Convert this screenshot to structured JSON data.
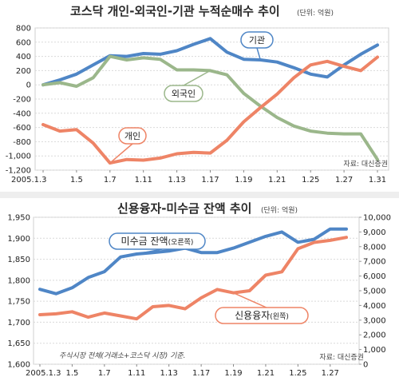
{
  "chart_data": [
    {
      "type": "line",
      "title": "코스닥 개인-외국인-기관 누적순매수 추이",
      "unit": "(단위: 억원)",
      "source": "자료: 대신증권",
      "x_tick_labels": [
        "2005.1.3",
        "1.5",
        "1.7",
        "1.11",
        "1.13",
        "1.17",
        "1.19",
        "1.21",
        "1.25",
        "1.27",
        "1.31"
      ],
      "y_tick_labels": [
        "800",
        "600",
        "400",
        "200",
        "0",
        "-200",
        "-400",
        "-600",
        "-800",
        "-1,000",
        "-1,200"
      ],
      "ylim": [
        -1200,
        800
      ],
      "grid": true,
      "series": [
        {
          "name": "기관",
          "color": "#4f86c6",
          "values": [
            0,
            70,
            150,
            280,
            410,
            400,
            440,
            430,
            480,
            570,
            650,
            460,
            360,
            350,
            320,
            240,
            150,
            110,
            280,
            430,
            560
          ]
        },
        {
          "name": "외국인",
          "color": "#9bb78b",
          "values": [
            0,
            30,
            -20,
            100,
            400,
            350,
            380,
            360,
            210,
            210,
            200,
            140,
            -120,
            -300,
            -460,
            -580,
            -650,
            -680,
            -690,
            -690,
            -1050
          ]
        },
        {
          "name": "개인",
          "color": "#ee8466",
          "values": [
            -560,
            -650,
            -630,
            -820,
            -1100,
            -1050,
            -1060,
            -1030,
            -970,
            -950,
            -960,
            -780,
            -520,
            -320,
            -130,
            100,
            280,
            330,
            260,
            200,
            390
          ]
        }
      ]
    },
    {
      "type": "line",
      "title": "신용융자-미수금 잔액 추이",
      "unit": "(단위: 억원)",
      "source": "자료: 대신증권",
      "note": "주식시장 전체(거래소+코스닥 시장) 기준.",
      "x_tick_labels": [
        "2005.1.3",
        "1.5",
        "1.7",
        "1.11",
        "1.13",
        "1.17",
        "1.19",
        "1.21",
        "1.25",
        "1.27"
      ],
      "y_left_tick_labels": [
        "1,950",
        "1,900",
        "1,850",
        "1,800",
        "1,750",
        "1,700",
        "1,650",
        "1,600"
      ],
      "y_right_tick_labels": [
        "10,000",
        "9,000",
        "8,000",
        "7,000",
        "6,000",
        "5,000",
        "4,000",
        "3,000",
        "2,000",
        "1,000",
        "0"
      ],
      "ylim_left": [
        1600,
        1950
      ],
      "ylim_right": [
        0,
        10000
      ],
      "grid": true,
      "series": [
        {
          "name": "미수금 잔액",
          "name_note": "(오른쪽)",
          "axis": "right",
          "color": "#4f86c6",
          "values": [
            5100,
            4800,
            5200,
            5900,
            6300,
            7300,
            7500,
            7600,
            7700,
            7900,
            7600,
            7600,
            7900,
            8300,
            8700,
            9000,
            8300,
            8500,
            9200,
            9200
          ]
        },
        {
          "name": "신용융자",
          "name_note": "(왼쪽)",
          "axis": "left",
          "color": "#ee8466",
          "values": [
            1718,
            1720,
            1725,
            1712,
            1722,
            1715,
            1708,
            1737,
            1740,
            1732,
            1758,
            1778,
            1770,
            1775,
            1812,
            1820,
            1875,
            1890,
            1895,
            1902
          ]
        }
      ]
    }
  ]
}
